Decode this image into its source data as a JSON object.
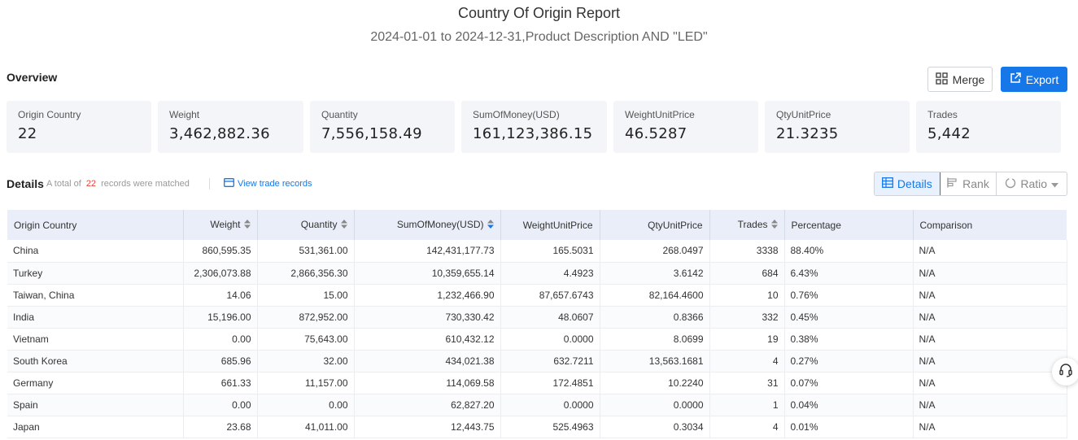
{
  "header": {
    "title": "Country Of Origin Report",
    "subtitle": "2024-01-01 to 2024-12-31,Product Description AND \"LED\""
  },
  "overview": {
    "label": "Overview",
    "merge_label": "Merge",
    "export_label": "Export",
    "cards": [
      {
        "label": "Origin Country",
        "value": "22"
      },
      {
        "label": "Weight",
        "value": "3,462,882.36"
      },
      {
        "label": "Quantity",
        "value": "7,556,158.49"
      },
      {
        "label": "SumOfMoney(USD)",
        "value": "161,123,386.15"
      },
      {
        "label": "WeightUnitPrice",
        "value": "46.5287"
      },
      {
        "label": "QtyUnitPrice",
        "value": "21.3235"
      },
      {
        "label": "Trades",
        "value": "5,442"
      }
    ]
  },
  "details": {
    "label": "Details",
    "matched_prefix": "A total of",
    "matched_count": "22",
    "matched_suffix": "records were matched",
    "view_link": "View trade records",
    "view_toggle": {
      "details": "Details",
      "rank": "Rank",
      "ratio": "Ratio"
    }
  },
  "colors": {
    "accent": "#1677e8",
    "highlight_count": "#e8453c",
    "header_bg": "#e9eef8"
  },
  "table": {
    "columns": [
      "Origin Country",
      "Weight",
      "Quantity",
      "SumOfMoney(USD)",
      "WeightUnitPrice",
      "QtyUnitPrice",
      "Trades",
      "Percentage",
      "Comparison"
    ],
    "rows": [
      [
        "China",
        "860,595.35",
        "531,361.00",
        "142,431,177.73",
        "165.5031",
        "268.0497",
        "3338",
        "88.40%",
        "N/A"
      ],
      [
        "Turkey",
        "2,306,073.88",
        "2,866,356.30",
        "10,359,655.14",
        "4.4923",
        "3.6142",
        "684",
        "6.43%",
        "N/A"
      ],
      [
        "Taiwan, China",
        "14.06",
        "15.00",
        "1,232,466.90",
        "87,657.6743",
        "82,164.4600",
        "10",
        "0.76%",
        "N/A"
      ],
      [
        "India",
        "15,196.00",
        "872,952.00",
        "730,330.42",
        "48.0607",
        "0.8366",
        "332",
        "0.45%",
        "N/A"
      ],
      [
        "Vietnam",
        "0.00",
        "75,643.00",
        "610,432.12",
        "0.0000",
        "8.0699",
        "19",
        "0.38%",
        "N/A"
      ],
      [
        "South Korea",
        "685.96",
        "32.00",
        "434,021.38",
        "632.7211",
        "13,563.1681",
        "4",
        "0.27%",
        "N/A"
      ],
      [
        "Germany",
        "661.33",
        "11,157.00",
        "114,069.58",
        "172.4851",
        "10.2240",
        "31",
        "0.07%",
        "N/A"
      ],
      [
        "Spain",
        "0.00",
        "0.00",
        "62,827.20",
        "0.0000",
        "0.0000",
        "1",
        "0.04%",
        "N/A"
      ],
      [
        "Japan",
        "23.68",
        "41,011.00",
        "12,443.75",
        "525.4963",
        "0.3034",
        "4",
        "0.01%",
        "N/A"
      ]
    ]
  }
}
